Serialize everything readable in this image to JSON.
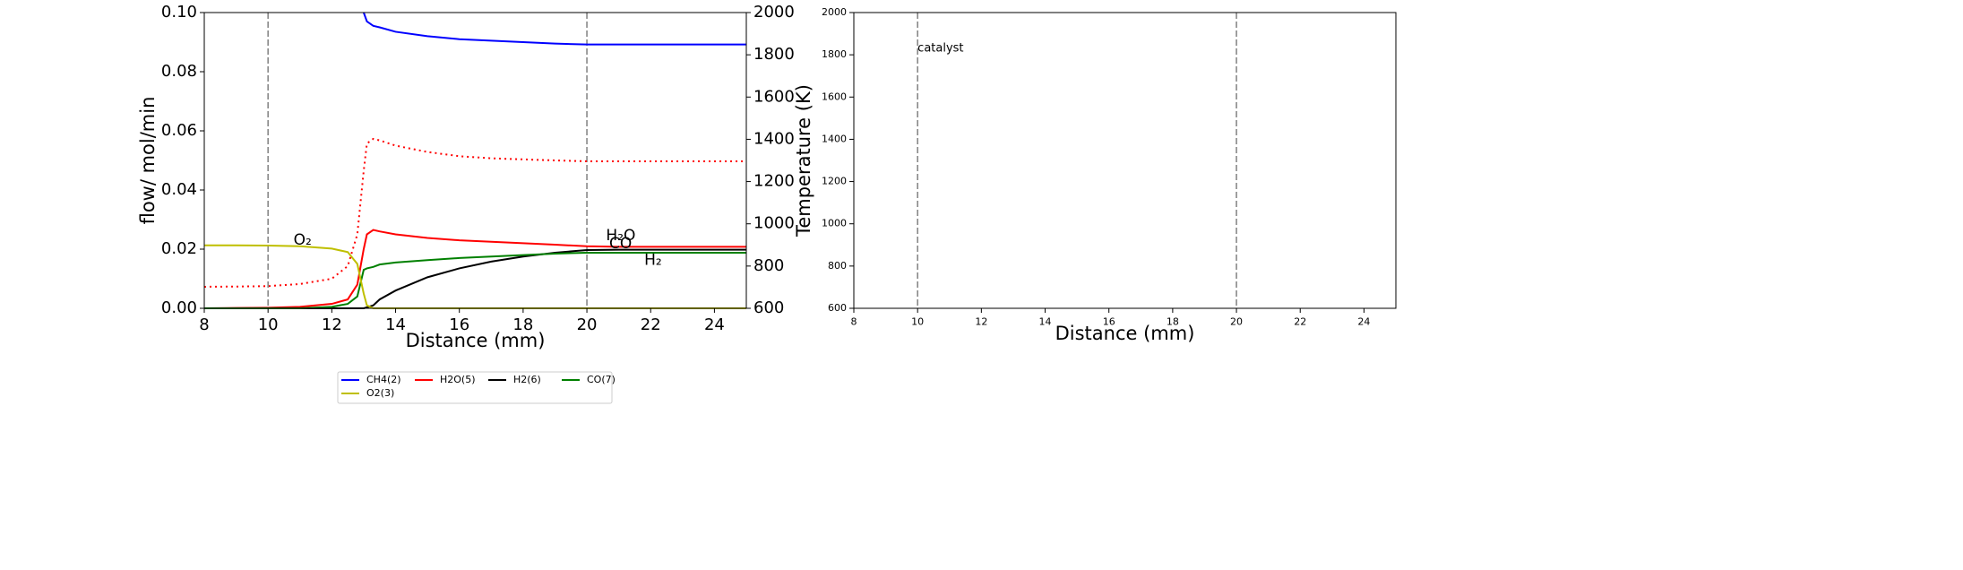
{
  "chart_data": [
    {
      "type": "line",
      "xlabel": "Distance (mm)",
      "ylabel": "flow/ mol/min",
      "y2label": "Temperature (K)",
      "xlim": [
        8,
        25
      ],
      "xticks": [
        8,
        10,
        12,
        14,
        16,
        18,
        20,
        22,
        24
      ],
      "ylim": [
        0,
        0.1
      ],
      "yticks": [
        {
          "value": 0,
          "label": "0.00"
        },
        {
          "value": 0.02,
          "label": "0.02"
        },
        {
          "value": 0.04,
          "label": "0.04"
        },
        {
          "value": 0.06,
          "label": "0.06"
        },
        {
          "value": 0.08,
          "label": "0.08"
        },
        {
          "value": 0.1,
          "label": "0.10"
        }
      ],
      "y2lim": [
        600,
        2000
      ],
      "y2ticks": [
        600,
        800,
        1000,
        1200,
        1400,
        1600,
        1800,
        2000
      ],
      "vlines": [
        10,
        20
      ],
      "legend": "below",
      "x": [
        8,
        9,
        10,
        11,
        12,
        12.5,
        12.8,
        13,
        13.1,
        13.3,
        13.5,
        14,
        15,
        16,
        17,
        18,
        19,
        20,
        21,
        22,
        23,
        24,
        25
      ],
      "series": [
        {
          "name": "CH4(2)",
          "color": "#0000ff",
          "values": [
            null,
            null,
            null,
            null,
            null,
            null,
            null,
            0.1,
            0.097,
            0.0955,
            0.095,
            0.0935,
            0.092,
            0.091,
            0.0905,
            0.09,
            0.0895,
            0.0892,
            0.0892,
            0.0892,
            0.0892,
            0.0892,
            0.0892
          ]
        },
        {
          "name": "H2O(5)",
          "color": "#ff0000",
          "values": [
            0,
            0.0001,
            0.0002,
            0.0005,
            0.0015,
            0.003,
            0.008,
            0.02,
            0.025,
            0.0265,
            0.026,
            0.025,
            0.0238,
            0.023,
            0.0225,
            0.022,
            0.0215,
            0.021,
            0.0208,
            0.0208,
            0.0208,
            0.0208,
            0.0208
          ]
        },
        {
          "name": "H2(6)",
          "color": "#000000",
          "values": [
            0,
            0,
            0,
            0,
            0,
            0,
            0,
            0,
            0.0003,
            0.001,
            0.003,
            0.006,
            0.0105,
            0.0135,
            0.0158,
            0.0175,
            0.0188,
            0.0197,
            0.0198,
            0.0198,
            0.0198,
            0.0198,
            0.0198
          ]
        },
        {
          "name": "CO(7)",
          "color": "#008000",
          "values": [
            0,
            0,
            0,
            0,
            0.0005,
            0.0015,
            0.004,
            0.013,
            0.0135,
            0.014,
            0.0148,
            0.0155,
            0.0163,
            0.017,
            0.0175,
            0.018,
            0.0185,
            0.0188,
            0.0188,
            0.0188,
            0.0188,
            0.0188,
            0.0188
          ]
        },
        {
          "name": "O2(3)",
          "color": "#bfbf00",
          "values": [
            0.0213,
            0.0213,
            0.0212,
            0.021,
            0.0202,
            0.019,
            0.015,
            0.005,
            0.001,
            0,
            0,
            0,
            0,
            0,
            0,
            0,
            0,
            0,
            0,
            0,
            0,
            0,
            0
          ]
        },
        {
          "color": "#ff0000",
          "dash": "dotted",
          "axis": "y2",
          "values": [
            702,
            703,
            705,
            715,
            740,
            800,
            950,
            1250,
            1380,
            1402,
            1395,
            1370,
            1340,
            1320,
            1310,
            1305,
            1300,
            1296,
            1296,
            1296,
            1296,
            1296,
            1296
          ]
        }
      ],
      "annotations": [
        {
          "text": "O₂",
          "x": 10.8,
          "y": 0.023,
          "color": "#bfbf00"
        },
        {
          "text": "H₂O",
          "x": 20.6,
          "y": 0.0245,
          "color": "#ff0000"
        },
        {
          "text": "CO",
          "x": 20.7,
          "y": 0.0218,
          "color": "#008000"
        },
        {
          "text": "H₂",
          "x": 21.8,
          "y": 0.0162,
          "color": "#000000"
        }
      ]
    },
    {
      "type": "line",
      "xlabel": "Distance (mm)",
      "xlim": [
        8,
        25
      ],
      "xticks": [
        8,
        10,
        12,
        14,
        16,
        18,
        20,
        22,
        24
      ],
      "ylim": [
        600,
        2000
      ],
      "yticks": [
        600,
        800,
        1000,
        1200,
        1400,
        1600,
        1800,
        2000
      ],
      "vlines": [
        10,
        20
      ],
      "x": [],
      "series": [],
      "annotations": [
        {
          "text": "catalyst",
          "x": 10,
          "y": 1830,
          "color": "#000000"
        }
      ]
    }
  ]
}
